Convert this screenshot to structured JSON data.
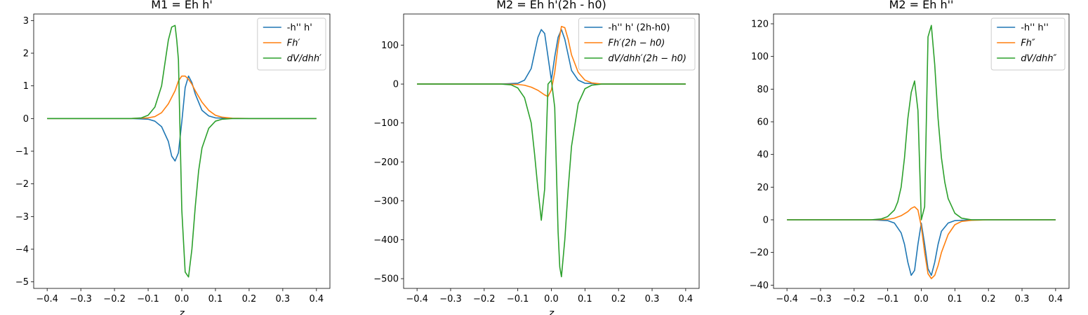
{
  "figure": {
    "background": "#ffffff"
  },
  "chart_data": [
    {
      "type": "line",
      "title": "M1 = Eh h'",
      "xlabel": "z",
      "ylabel": "",
      "xlim": [
        -0.44,
        0.44
      ],
      "ylim": [
        -5.2,
        3.2
      ],
      "xticks": [
        -0.4,
        -0.3,
        -0.2,
        -0.1,
        0.0,
        0.1,
        0.2,
        0.3,
        0.4
      ],
      "yticks": [
        -5,
        -4,
        -3,
        -2,
        -1,
        0,
        1,
        2,
        3
      ],
      "grid": false,
      "legend": "top-right",
      "series": [
        {
          "name": "-h'' h'",
          "math": false,
          "color": "#1f77b4",
          "x": [
            -0.4,
            -0.15,
            -0.1,
            -0.08,
            -0.06,
            -0.04,
            -0.03,
            -0.02,
            -0.01,
            0.0,
            0.01,
            0.02,
            0.03,
            0.04,
            0.06,
            0.08,
            0.1,
            0.15,
            0.4
          ],
          "y": [
            0,
            0,
            -0.02,
            -0.08,
            -0.25,
            -0.7,
            -1.15,
            -1.3,
            -1.05,
            -0.1,
            0.95,
            1.3,
            1.1,
            0.75,
            0.25,
            0.08,
            0.02,
            0,
            0
          ]
        },
        {
          "name": "Fh′",
          "math": true,
          "color": "#ff7f0e",
          "x": [
            -0.4,
            -0.15,
            -0.1,
            -0.08,
            -0.06,
            -0.04,
            -0.02,
            -0.01,
            0.0,
            0.01,
            0.02,
            0.03,
            0.04,
            0.06,
            0.08,
            0.1,
            0.12,
            0.15,
            0.2,
            0.4
          ],
          "y": [
            0,
            0,
            0.02,
            0.06,
            0.18,
            0.45,
            0.85,
            1.15,
            1.3,
            1.3,
            1.2,
            1.05,
            0.85,
            0.5,
            0.25,
            0.1,
            0.04,
            0.01,
            0,
            0
          ]
        },
        {
          "name": "dV/dhh′",
          "math": true,
          "color": "#2ca02c",
          "x": [
            -0.4,
            -0.15,
            -0.12,
            -0.1,
            -0.08,
            -0.06,
            -0.05,
            -0.04,
            -0.03,
            -0.02,
            -0.015,
            -0.01,
            0.0,
            0.01,
            0.02,
            0.03,
            0.04,
            0.05,
            0.06,
            0.08,
            0.1,
            0.12,
            0.15,
            0.4
          ],
          "y": [
            0,
            0,
            0.02,
            0.1,
            0.35,
            1.0,
            1.7,
            2.4,
            2.8,
            2.85,
            2.4,
            1.8,
            -2.8,
            -4.7,
            -4.85,
            -4.0,
            -2.7,
            -1.6,
            -0.9,
            -0.3,
            -0.08,
            -0.02,
            0,
            0
          ]
        }
      ]
    },
    {
      "type": "line",
      "title": "M2 = Eh h'(2h - h0)",
      "xlabel": "z",
      "ylabel": "",
      "xlim": [
        -0.44,
        0.44
      ],
      "ylim": [
        -525,
        180
      ],
      "xticks": [
        -0.4,
        -0.3,
        -0.2,
        -0.1,
        0.0,
        0.1,
        0.2,
        0.3,
        0.4
      ],
      "yticks": [
        -500,
        -400,
        -300,
        -200,
        -100,
        0,
        100
      ],
      "grid": false,
      "legend": "top-right",
      "series": [
        {
          "name": "-h'' h' (2h-h0)",
          "math": false,
          "color": "#1f77b4",
          "x": [
            -0.4,
            -0.15,
            -0.1,
            -0.08,
            -0.06,
            -0.05,
            -0.04,
            -0.03,
            -0.02,
            -0.01,
            0.0,
            0.01,
            0.02,
            0.03,
            0.04,
            0.05,
            0.06,
            0.08,
            0.1,
            0.15,
            0.4
          ],
          "y": [
            0,
            0,
            2,
            10,
            40,
            80,
            120,
            140,
            130,
            70,
            10,
            70,
            120,
            140,
            115,
            75,
            35,
            10,
            2,
            0,
            0
          ]
        },
        {
          "name": "Fh′(2h − h0)",
          "math": true,
          "color": "#ff7f0e",
          "x": [
            -0.4,
            -0.15,
            -0.1,
            -0.08,
            -0.06,
            -0.04,
            -0.02,
            -0.01,
            0.0,
            0.01,
            0.02,
            0.03,
            0.04,
            0.05,
            0.06,
            0.08,
            0.1,
            0.12,
            0.15,
            0.4
          ],
          "y": [
            0,
            0,
            -1,
            -3,
            -8,
            -16,
            -28,
            -32,
            -15,
            30,
            100,
            148,
            145,
            115,
            75,
            30,
            10,
            3,
            0,
            0
          ]
        },
        {
          "name": "dV/dhh′(2h − h0)",
          "math": true,
          "color": "#2ca02c",
          "x": [
            -0.4,
            -0.15,
            -0.12,
            -0.1,
            -0.08,
            -0.06,
            -0.05,
            -0.04,
            -0.03,
            -0.02,
            -0.01,
            0.0,
            0.01,
            0.02,
            0.025,
            0.03,
            0.04,
            0.05,
            0.06,
            0.08,
            0.1,
            0.12,
            0.15,
            0.4
          ],
          "y": [
            0,
            0,
            -2,
            -10,
            -35,
            -100,
            -180,
            -270,
            -350,
            -270,
            0,
            10,
            -60,
            -380,
            -470,
            -495,
            -400,
            -270,
            -160,
            -50,
            -12,
            -3,
            0,
            0
          ]
        }
      ]
    },
    {
      "type": "line",
      "title": "M2 = Eh h''",
      "xlabel": "",
      "ylabel": "",
      "xlim": [
        -0.44,
        0.44
      ],
      "ylim": [
        -42,
        126
      ],
      "xticks": [
        -0.4,
        -0.3,
        -0.2,
        -0.1,
        0.0,
        0.1,
        0.2,
        0.3,
        0.4
      ],
      "yticks": [
        -40,
        -20,
        0,
        20,
        40,
        60,
        80,
        100,
        120
      ],
      "grid": false,
      "legend": "top-right",
      "series": [
        {
          "name": "-h'' h''",
          "math": false,
          "color": "#1f77b4",
          "x": [
            -0.4,
            -0.15,
            -0.1,
            -0.08,
            -0.06,
            -0.05,
            -0.04,
            -0.03,
            -0.02,
            -0.01,
            0.0,
            0.01,
            0.02,
            0.03,
            0.04,
            0.05,
            0.06,
            0.08,
            0.1,
            0.15,
            0.4
          ],
          "y": [
            0,
            0,
            -0.5,
            -2,
            -8,
            -15,
            -26,
            -34,
            -31,
            -15,
            -2,
            -15,
            -30,
            -34,
            -26,
            -15,
            -7,
            -2,
            -0.5,
            0,
            0
          ]
        },
        {
          "name": "Fh″",
          "math": true,
          "color": "#ff7f0e",
          "x": [
            -0.4,
            -0.15,
            -0.1,
            -0.08,
            -0.06,
            -0.04,
            -0.03,
            -0.02,
            -0.01,
            0.0,
            0.01,
            0.02,
            0.03,
            0.04,
            0.05,
            0.06,
            0.08,
            0.1,
            0.12,
            0.15,
            0.2,
            0.4
          ],
          "y": [
            0,
            0,
            0.3,
            1,
            2.5,
            5,
            7,
            8,
            6,
            -4,
            -20,
            -33,
            -36,
            -34,
            -28,
            -20,
            -9,
            -3,
            -1,
            -0.3,
            0,
            0
          ]
        },
        {
          "name": "dV/dhh″",
          "math": true,
          "color": "#2ca02c",
          "x": [
            -0.4,
            -0.15,
            -0.12,
            -0.1,
            -0.08,
            -0.07,
            -0.06,
            -0.05,
            -0.04,
            -0.03,
            -0.02,
            -0.01,
            0.0,
            0.01,
            0.02,
            0.03,
            0.04,
            0.05,
            0.06,
            0.07,
            0.08,
            0.1,
            0.12,
            0.15,
            0.4
          ],
          "y": [
            0,
            0,
            0.5,
            2,
            6,
            11,
            20,
            38,
            62,
            78,
            85,
            67,
            0,
            8,
            112,
            119,
            95,
            62,
            38,
            23,
            13,
            4,
            1,
            0,
            0
          ]
        }
      ]
    }
  ]
}
